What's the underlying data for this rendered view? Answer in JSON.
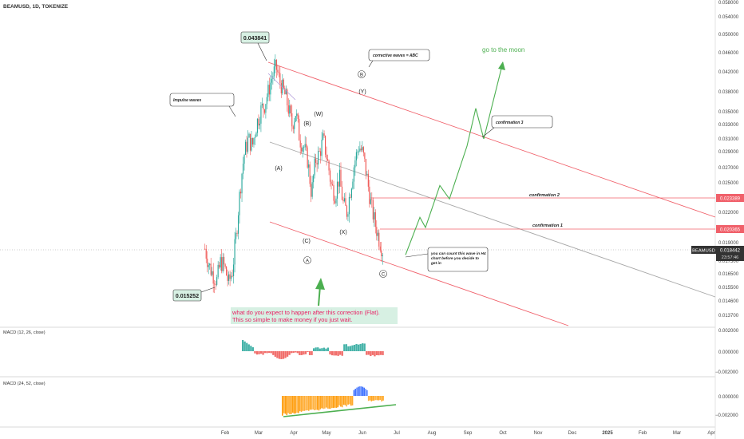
{
  "header": {
    "symbol_line": "BEAMUSD, 1D, TOKENIZE"
  },
  "colors": {
    "up": "#26a69a",
    "down": "#ef5350",
    "channel": "#f0606a",
    "midline": "#9e9e9e",
    "projection": "#4caf50",
    "macd_pos": "#26a69a",
    "macd_neg": "#ef5350",
    "macd2_orange": "#ff9800",
    "macd2_blue": "#2962ff",
    "annotation_red": "#e91e63",
    "annotation_bg": "#d7f0e3"
  },
  "price_labels": {
    "high": "0.043841",
    "low": "0.015252",
    "conf2": "0.023389",
    "conf1": "0.020365",
    "last": "0.018442",
    "ticker": "BEAMUSD",
    "countdown": "23:57:46"
  },
  "annotations": {
    "impulse": "Impulse waves",
    "corrective": "corrective waves = ABC",
    "moon": "go to the moon",
    "confirm3": "confirmation 3",
    "confirm2": "confirmation 2",
    "confirm1": "confirmation 1",
    "count_line1": "you can count this wave in H4",
    "count_line2": "chart before you  decide to",
    "count_line3": "get in",
    "question_line1": "what do you expect to happen after this correction (Flat).",
    "question_line2": "This so simple to make money if you just wait.",
    "waves": {
      "A_paren": "(A)",
      "B_paren": "(B)",
      "C_paren": "(C)",
      "W_paren": "(W)",
      "X_paren": "(X)",
      "Y_paren": "(Y)",
      "A_circle": "A",
      "B_circle": "B",
      "C_circle": "C"
    }
  },
  "macd1": {
    "label": "MACD (12, 26, close)",
    "ticks": [
      "0.002000",
      "0.000000",
      "−0.002000"
    ]
  },
  "macd2": {
    "label": "MACD (24, 52, close)",
    "ticks": [
      "0.000000",
      "−0.002000"
    ]
  },
  "chart_data": {
    "type": "candlestick",
    "symbol": "BEAMUSD",
    "timeframe": "1D",
    "x_axis": [
      "Feb",
      "Mar",
      "Apr",
      "May",
      "Jun",
      "Jul",
      "Aug",
      "Sep",
      "Oct",
      "Nov",
      "Dec",
      "2025",
      "Feb",
      "Mar",
      "Apr"
    ],
    "y_axis_ticks": [
      "0.058000",
      "0.054000",
      "0.050000",
      "0.046000",
      "0.042000",
      "0.038000",
      "0.035000",
      "0.033000",
      "0.031000",
      "0.029000",
      "0.027000",
      "0.025000",
      "0.022000",
      "0.019000",
      "0.017500",
      "0.016500",
      "0.015500",
      "0.014600",
      "0.013700"
    ],
    "key_levels": {
      "high": 0.043841,
      "low": 0.015252,
      "confirmation_2": 0.023389,
      "confirmation_1": 0.020365,
      "last": 0.018442
    },
    "price_path": [
      0.0185,
      0.0172,
      0.0165,
      0.016,
      0.0175,
      0.017,
      0.0158,
      0.0168,
      0.02,
      0.025,
      0.029,
      0.031,
      0.03,
      0.033,
      0.035,
      0.036,
      0.038,
      0.041,
      0.043,
      0.04,
      0.038,
      0.036,
      0.033,
      0.035,
      0.031,
      0.03,
      0.028,
      0.024,
      0.028,
      0.029,
      0.031,
      0.028,
      0.025,
      0.024,
      0.026,
      0.023,
      0.022,
      0.025,
      0.028,
      0.03,
      0.029,
      0.026,
      0.023,
      0.021,
      0.0195,
      0.0184
    ],
    "projection_path": [
      0.018,
      0.0215,
      0.0205,
      0.025,
      0.0235,
      0.03,
      0.0355,
      0.031,
      0.044
    ]
  }
}
